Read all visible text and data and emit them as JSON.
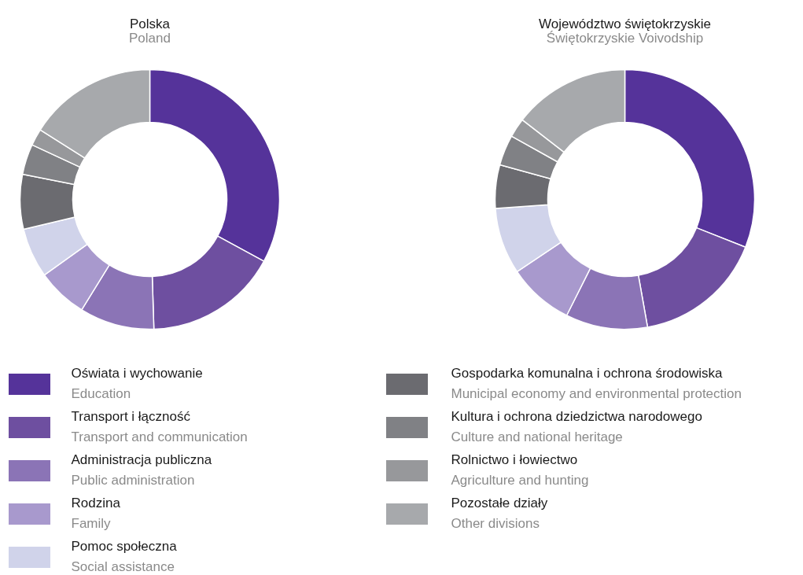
{
  "chart_data": [
    {
      "type": "donut",
      "title": "Polska",
      "subtitle": "Poland",
      "legend": "bottom",
      "categories": [
        "Oświata i wychowanie\nEducation",
        "Transport i łączność\nTransport and communication",
        "Administracja publiczna\nPublic administration",
        "Rodzina\nFamily",
        "Pomoc społeczna\nSocial assistance",
        "Gospodarka komunalna i ochrona środowiska\nMunicipal economy and environmental protection",
        "Kultura i ochrona dziedzictwa narodowego\nCulture and national heritage",
        "Rolnictwo i łowiectwo\nAgriculture and hunting",
        "Pozostałe działy\nOther divisions"
      ],
      "values": [
        32.9,
        16.6,
        9.3,
        6.3,
        6.2,
        6.8,
        3.8,
        2.1,
        16.0
      ],
      "colors": [
        "#55339a",
        "#6e4fa0",
        "#8b74b6",
        "#a899cd",
        "#d0d3ea",
        "#6b6b70",
        "#808185",
        "#97989b",
        "#a7a9ac"
      ]
    },
    {
      "type": "donut",
      "title": "Województwo świętokrzyskie",
      "subtitle": "Świętokrzyskie Voivodship",
      "categories": [
        null,
        null,
        null,
        null,
        null,
        null,
        null,
        null,
        null
      ],
      "values": [
        31.0,
        16.2,
        10.2,
        8.2,
        8.3,
        5.4,
        3.8,
        2.4,
        14.5
      ],
      "colors": [
        "#55339a",
        "#6e4fa0",
        "#8b74b6",
        "#a899cd",
        "#d0d3ea",
        "#6b6b70",
        "#808185",
        "#97989b",
        "#a7a9ac"
      ]
    }
  ]
}
